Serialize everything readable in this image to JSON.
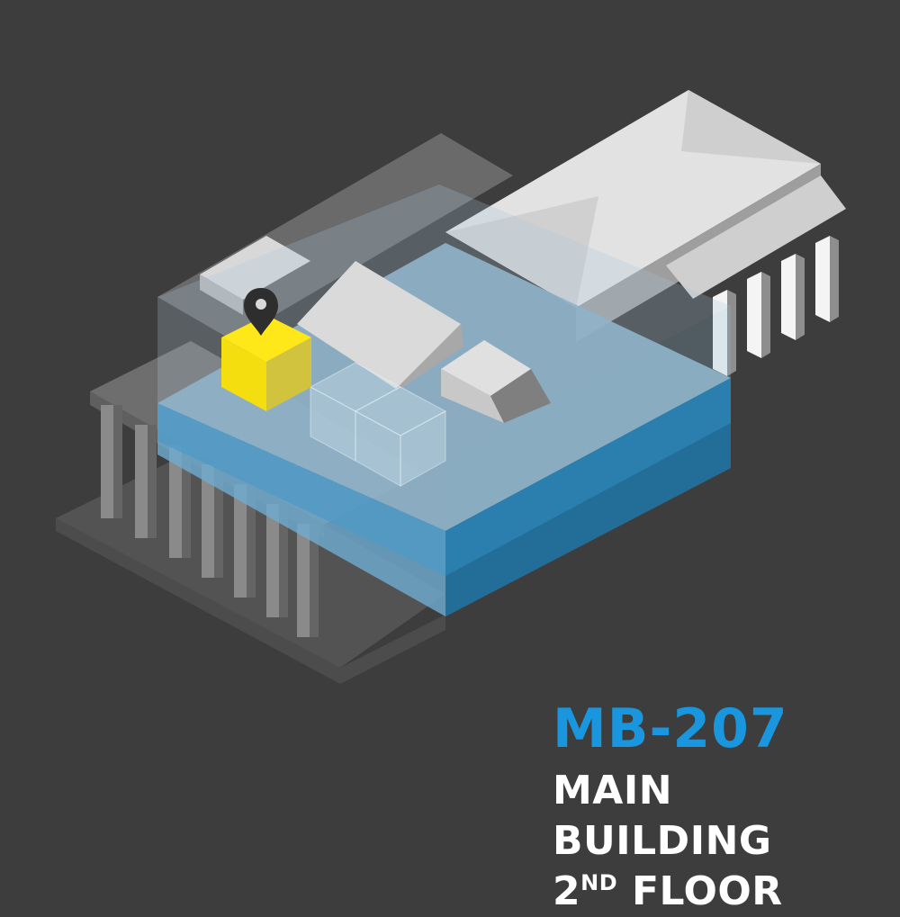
{
  "room": {
    "code": "MB-207",
    "building": "MAIN BUILDING",
    "floor_number": "2",
    "floor_suffix": "ND",
    "floor_word": "FLOOR"
  },
  "icons": {
    "marker": "location-pin-icon"
  },
  "colors": {
    "background": "#3d3d3d",
    "highlight_room": "#ffe01a",
    "active_floor": "#2c8ec4",
    "code_text": "#1996dd",
    "label_text": "#ffffff"
  }
}
